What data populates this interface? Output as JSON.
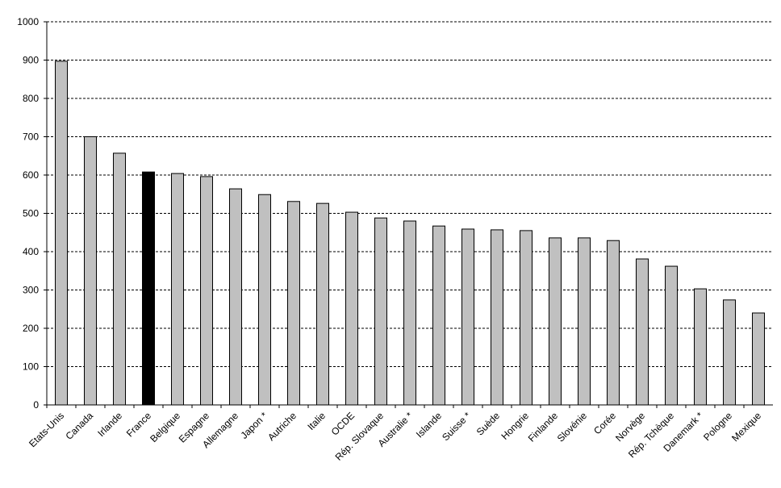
{
  "chart_data": {
    "type": "bar",
    "categories": [
      "Etats-Unis",
      "Canada",
      "Irlande",
      "France",
      "Belgique",
      "Espagne",
      "Allemagne",
      "Japon *",
      "Autriche",
      "Italie",
      "OCDE",
      "Rép. Slovaque",
      "Australie *",
      "Islande",
      "Suisse *",
      "Suède",
      "Hongrie",
      "Finlande",
      "Slovénie",
      "Corée",
      "Norvège",
      "Rép. Tchèque",
      "Danemark *",
      "Pologne",
      "Mexique"
    ],
    "values": [
      897,
      700,
      657,
      608,
      604,
      596,
      564,
      549,
      531,
      526,
      503,
      488,
      480,
      467,
      459,
      457,
      455,
      436,
      436,
      429,
      381,
      362,
      303,
      274,
      240
    ],
    "colors": [
      "#c0c0c0",
      "#c0c0c0",
      "#c0c0c0",
      "#000000",
      "#c0c0c0",
      "#c0c0c0",
      "#c0c0c0",
      "#c0c0c0",
      "#c0c0c0",
      "#c0c0c0",
      "#c0c0c0",
      "#c0c0c0",
      "#c0c0c0",
      "#c0c0c0",
      "#c0c0c0",
      "#c0c0c0",
      "#c0c0c0",
      "#c0c0c0",
      "#c0c0c0",
      "#c0c0c0",
      "#c0c0c0",
      "#c0c0c0",
      "#c0c0c0",
      "#c0c0c0",
      "#c0c0c0"
    ],
    "ylim": [
      0,
      1000
    ],
    "yticks": [
      0,
      100,
      200,
      300,
      400,
      500,
      600,
      700,
      800,
      900,
      1000
    ],
    "grid": true
  }
}
